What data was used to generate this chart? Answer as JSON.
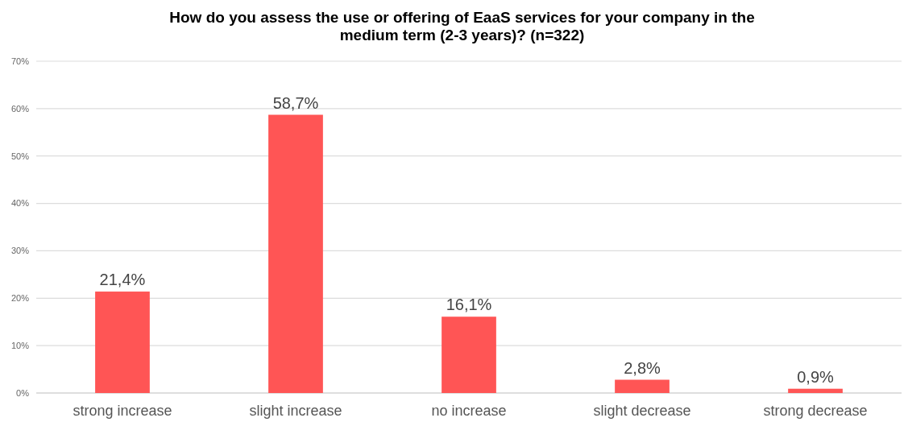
{
  "chart_data": {
    "type": "bar",
    "title": "How do you assess the use or offering of EaaS services for your company in the\nmedium term (2-3 years)? (n=322)",
    "categories": [
      "strong increase",
      "slight increase",
      "no increase",
      "slight decrease",
      "strong decrease"
    ],
    "values": [
      21.4,
      58.7,
      16.1,
      2.8,
      0.9
    ],
    "value_labels": [
      "21,4%",
      "58,7%",
      "16,1%",
      "2,8%",
      "0,9%"
    ],
    "color": "#ff5555",
    "ylim": [
      0,
      70
    ],
    "yticks": [
      {
        "value": 0,
        "label": "0%"
      },
      {
        "value": 10,
        "label": "10%"
      },
      {
        "value": 20,
        "label": "20%"
      },
      {
        "value": 30,
        "label": "30%"
      },
      {
        "value": 40,
        "label": "40%"
      },
      {
        "value": 50,
        "label": "50%"
      },
      {
        "value": 60,
        "label": "60%"
      },
      {
        "value": 70,
        "label": "70%"
      }
    ],
    "grid": "y"
  }
}
